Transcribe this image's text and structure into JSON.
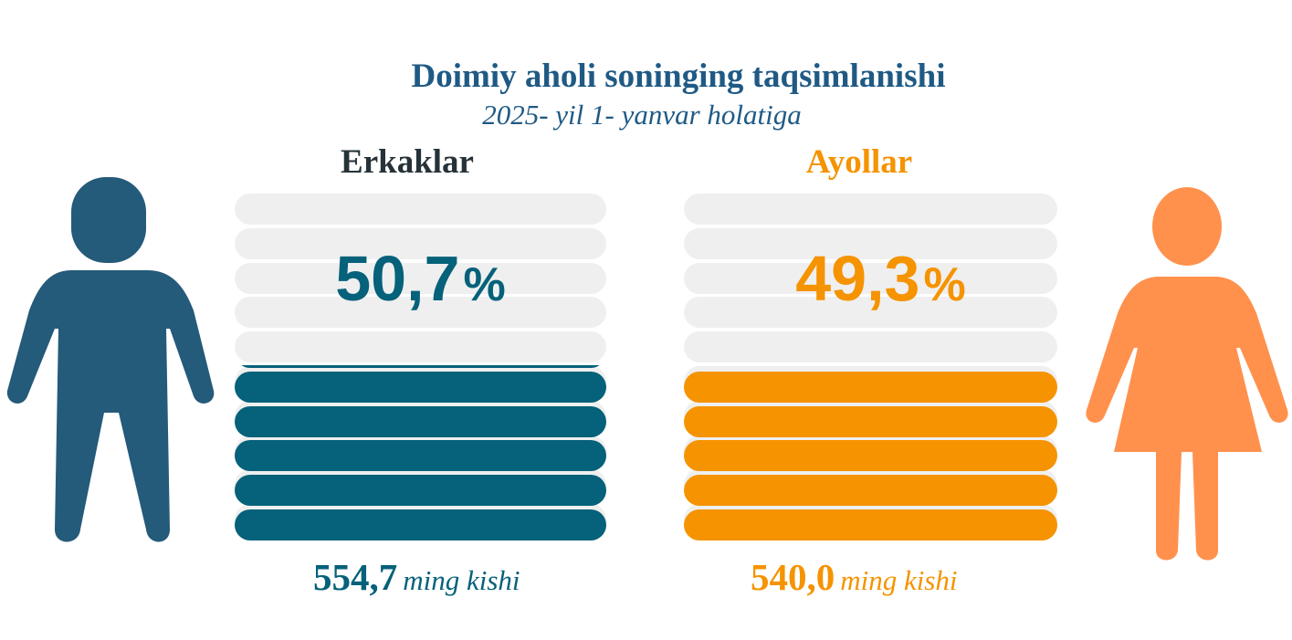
{
  "title": "Doimiy aholi soninging taqsimlanishi",
  "subtitle": "2025- yil 1- yanvar holatiga",
  "colors": {
    "men": "#06617a",
    "men_icon": "#245a7a",
    "women": "#f59300",
    "women_icon": "#ff914d",
    "empty_bar": "#efefef",
    "title": "#1f5a85"
  },
  "chart_data": {
    "type": "bar",
    "categories": [
      "Erkaklar",
      "Ayollar"
    ],
    "values": [
      50.7,
      49.3
    ],
    "unit": "%",
    "absolute_values": [
      554.7,
      540.0
    ],
    "absolute_unit": "ming kishi"
  },
  "men": {
    "label": "Erkaklar",
    "percent": 50.7,
    "percent_text": "50,7",
    "percent_symbol": "%",
    "count_text": "554,7",
    "unit_text": "ming kishi",
    "icon": "man-icon"
  },
  "women": {
    "label": "Ayollar",
    "percent": 49.3,
    "percent_text": "49,3",
    "percent_symbol": "%",
    "count_text": "540,0",
    "unit_text": "ming kishi",
    "icon": "woman-icon"
  }
}
